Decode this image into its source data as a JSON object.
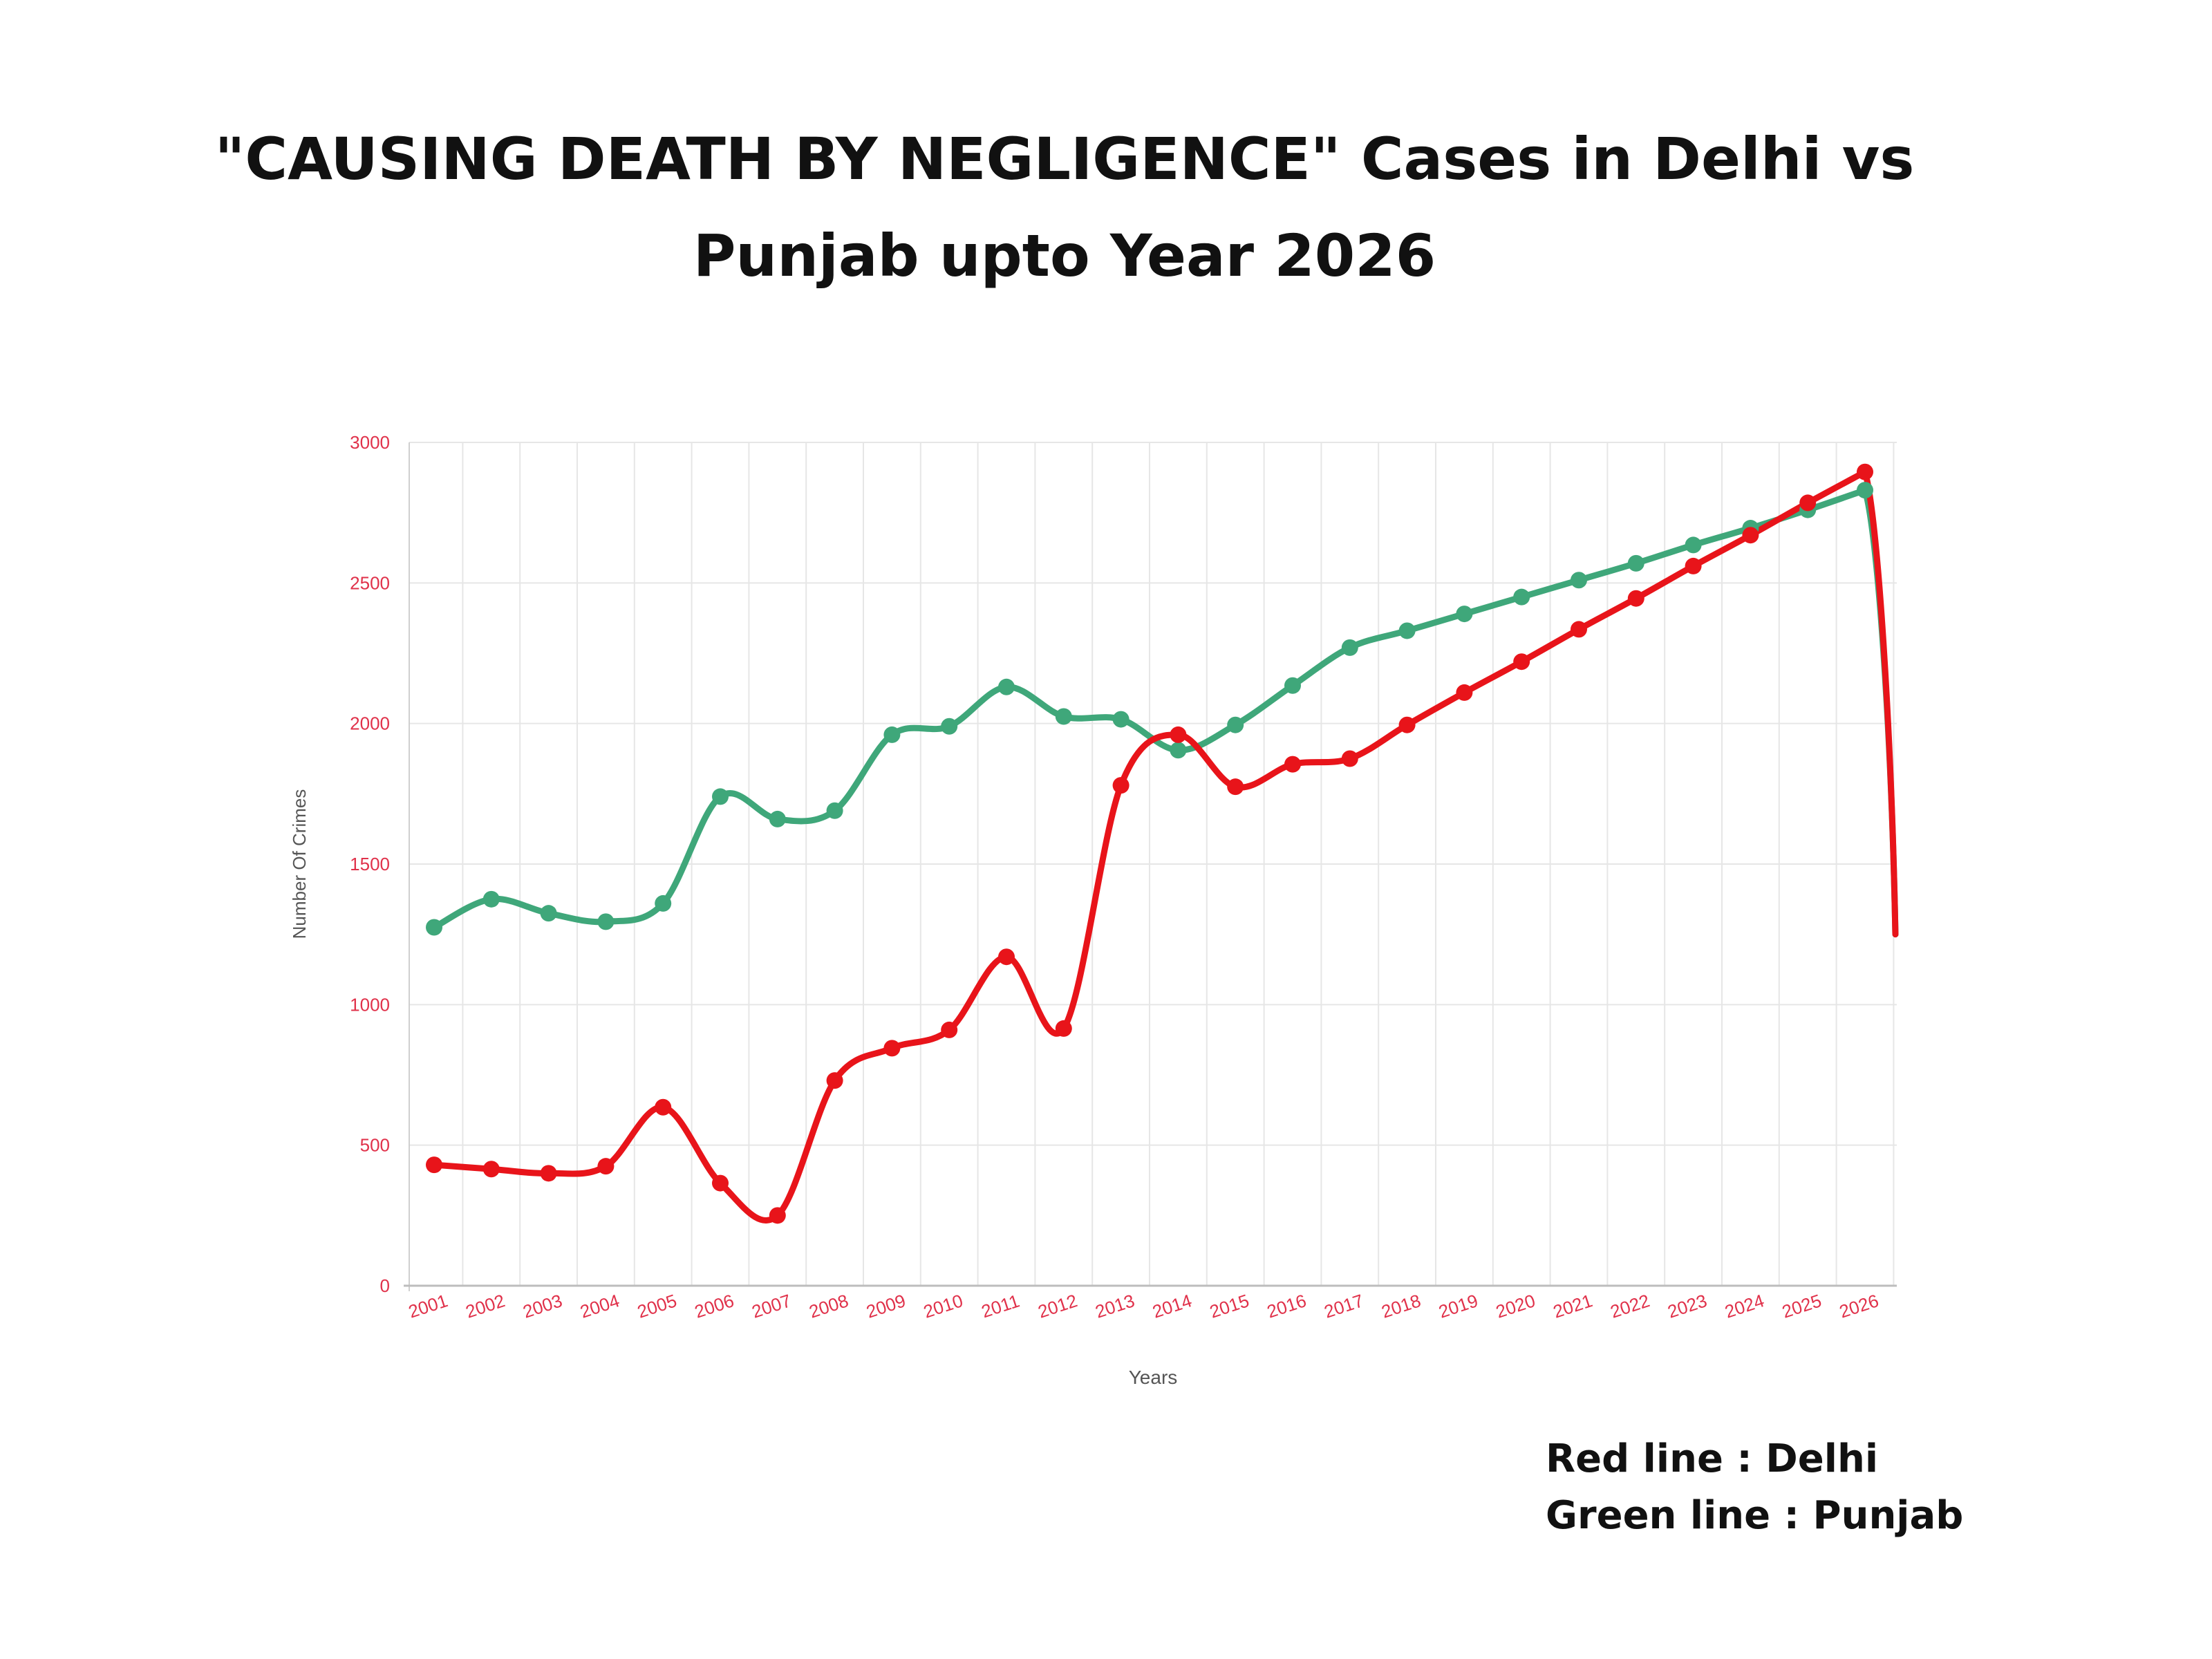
{
  "title_lines": [
    "\"CAUSING DEATH BY NEGLIGENCE\" Cases in Delhi vs",
    "Punjab upto Year 2026"
  ],
  "legend_notes": [
    "Red line : Delhi",
    "Green line : Punjab"
  ],
  "chart_data": {
    "type": "line",
    "title": "\"CAUSING DEATH BY NEGLIGENCE\" Cases in Delhi vs Punjab upto Year 2026",
    "xlabel": "Years",
    "ylabel": "Number Of Crimes",
    "ylim": [
      0,
      3000
    ],
    "yticks": [
      0,
      500,
      1000,
      1500,
      2000,
      2500,
      3000
    ],
    "grid": true,
    "categories": [
      "2001",
      "2002",
      "2003",
      "2004",
      "2005",
      "2006",
      "2007",
      "2008",
      "2009",
      "2010",
      "2011",
      "2012",
      "2013",
      "2014",
      "2015",
      "2016",
      "2017",
      "2018",
      "2019",
      "2020",
      "2021",
      "2022",
      "2023",
      "2024",
      "2025",
      "2026"
    ],
    "series": [
      {
        "name": "Delhi",
        "color": "#e8141a",
        "values": [
          430,
          415,
          400,
          425,
          635,
          365,
          250,
          730,
          845,
          910,
          1170,
          915,
          1780,
          1960,
          1775,
          1855,
          1875,
          1995,
          2110,
          2220,
          2335,
          2445,
          2560,
          2670,
          2785,
          2895
        ],
        "end_value": 1250
      },
      {
        "name": "Punjab",
        "color": "#3fa77a",
        "values": [
          1275,
          1375,
          1325,
          1295,
          1360,
          1740,
          1660,
          1690,
          1960,
          1990,
          2130,
          2025,
          2015,
          1905,
          1995,
          2135,
          2270,
          2330,
          2390,
          2450,
          2510,
          2570,
          2635,
          2695,
          2760,
          2830
        ],
        "end_value": 1250
      }
    ],
    "tick_color": "#e0314a",
    "grid_color": "#e6e6e6"
  }
}
